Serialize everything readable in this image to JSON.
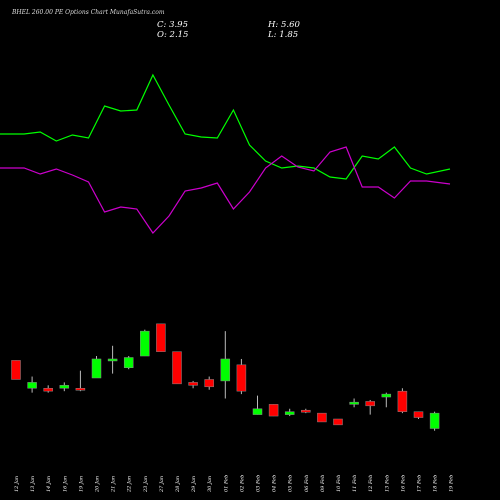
{
  "title": "BHEL 260.00 PE Options Chart MunafaSutra.com",
  "ohlc": {
    "close": "C: 3.95",
    "high": "H: 5.60",
    "open": "O: 2.15",
    "low": "L: 1.85"
  },
  "chart_data": {
    "type": "candlestick",
    "title": "BHEL 260.00 PE Options Chart MunafaSutra.com",
    "ylim": [
      0,
      14
    ],
    "x": [
      "12 Jan",
      "13 Jan",
      "14 Jan",
      "16 Jan",
      "19 Jan",
      "20 Jan",
      "21 Jan",
      "22 Jan",
      "23 Jan",
      "27 Jan",
      "28 Jan",
      "29 Jan",
      "30 Jan",
      "01 Feb",
      "02 Feb",
      "03 Feb",
      "04 Feb",
      "05 Feb",
      "06 Feb",
      "09 Feb",
      "10 Feb",
      "11 Feb",
      "12 Feb",
      "13 Feb",
      "16 Feb",
      "17 Feb",
      "18 Feb",
      "19 Feb"
    ],
    "candles": [
      {
        "date": "12 Jan",
        "open": 6.8,
        "high": 6.8,
        "low": 5.5,
        "close": 5.5
      },
      {
        "date": "13 Jan",
        "open": 4.9,
        "high": 5.7,
        "low": 4.6,
        "close": 5.3
      },
      {
        "date": "14 Jan",
        "open": 4.9,
        "high": 5.1,
        "low": 4.6,
        "close": 4.7
      },
      {
        "date": "16 Jan",
        "open": 4.9,
        "high": 5.3,
        "low": 4.7,
        "close": 5.1
      },
      {
        "date": "19 Jan",
        "open": 4.9,
        "high": 6.1,
        "low": 4.7,
        "close": 4.8
      },
      {
        "date": "20 Jan",
        "open": 5.6,
        "high": 7.1,
        "low": 5.6,
        "close": 6.9
      },
      {
        "date": "21 Jan",
        "open": 6.9,
        "high": 7.8,
        "low": 5.9,
        "close": 6.9
      },
      {
        "date": "22 Jan",
        "open": 6.3,
        "high": 7.1,
        "low": 6.2,
        "close": 7.0
      },
      {
        "date": "23 Jan",
        "open": 7.1,
        "high": 8.9,
        "low": 7.1,
        "close": 8.8
      },
      {
        "date": "27 Jan",
        "open": 9.3,
        "high": 9.3,
        "low": 7.4,
        "close": 7.4
      },
      {
        "date": "28 Jan",
        "open": 7.4,
        "high": 7.4,
        "low": 5.2,
        "close": 5.2
      },
      {
        "date": "29 Jan",
        "open": 5.3,
        "high": 5.4,
        "low": 4.9,
        "close": 5.1
      },
      {
        "date": "30 Jan",
        "open": 5.5,
        "high": 5.7,
        "low": 4.8,
        "close": 5.0
      },
      {
        "date": "01 Feb",
        "open": 5.4,
        "high": 8.8,
        "low": 4.2,
        "close": 6.9
      },
      {
        "date": "02 Feb",
        "open": 6.5,
        "high": 6.9,
        "low": 4.5,
        "close": 4.7
      },
      {
        "date": "03 Feb",
        "open": 3.1,
        "high": 4.4,
        "low": 3.1,
        "close": 3.5
      },
      {
        "date": "04 Feb",
        "open": 3.8,
        "high": 3.8,
        "low": 3.0,
        "close": 3.0
      },
      {
        "date": "05 Feb",
        "open": 3.1,
        "high": 3.5,
        "low": 3.0,
        "close": 3.3
      },
      {
        "date": "06 Feb",
        "open": 3.4,
        "high": 3.5,
        "low": 3.2,
        "close": 3.3
      },
      {
        "date": "09 Feb",
        "open": 3.2,
        "high": 3.2,
        "low": 2.6,
        "close": 2.6
      },
      {
        "date": "10 Feb",
        "open": 2.8,
        "high": 2.8,
        "low": 2.4,
        "close": 2.4
      },
      {
        "date": "11 Feb",
        "open": 3.8,
        "high": 4.2,
        "low": 3.6,
        "close": 3.95
      },
      {
        "date": "12 Feb",
        "open": 4.0,
        "high": 4.1,
        "low": 3.1,
        "close": 3.7
      },
      {
        "date": "13 Feb",
        "open": 4.3,
        "high": 4.6,
        "low": 3.6,
        "close": 4.5
      },
      {
        "date": "16 Feb",
        "open": 4.7,
        "high": 4.9,
        "low": 3.2,
        "close": 3.3
      },
      {
        "date": "17 Feb",
        "open": 3.3,
        "high": 3.3,
        "low": 2.8,
        "close": 2.9
      },
      {
        "date": "18 Feb",
        "open": 2.15,
        "high": 3.3,
        "low": 2.0,
        "close": 3.2
      }
    ],
    "lines": [
      {
        "color": "#00ff00",
        "values": [
          134,
          134,
          132,
          141,
          135,
          138,
          106,
          111,
          110,
          75,
          105,
          134,
          137,
          138,
          110,
          145,
          161,
          168,
          166,
          168,
          177,
          179,
          156,
          159,
          147,
          168,
          174,
          169
        ]
      },
      {
        "color": "#cc00cc",
        "values": [
          168,
          168,
          174,
          169,
          175,
          182,
          212,
          207,
          209,
          233,
          216,
          191,
          188,
          183,
          209,
          192,
          168,
          156,
          167,
          171,
          152,
          147,
          187,
          187,
          198,
          181,
          181,
          184
        ]
      }
    ]
  }
}
